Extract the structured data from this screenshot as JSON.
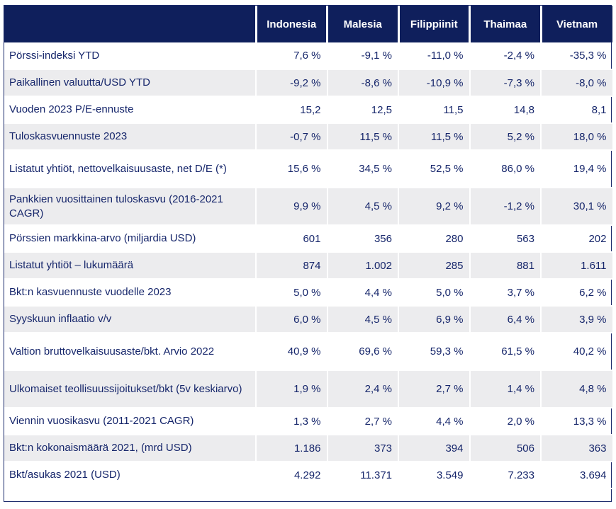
{
  "chart_data": {
    "type": "table",
    "columns": [
      "Indonesia",
      "Malesia",
      "Filippiinit",
      "Thaimaa",
      "Vietnam"
    ],
    "rows": [
      {
        "label": "Pörssi-indeksi YTD",
        "values": [
          "7,6 %",
          "-9,1 %",
          "-11,0 %",
          "-2,4 %",
          "-35,3 %"
        ]
      },
      {
        "label": "Paikallinen valuutta/USD YTD",
        "values": [
          "-9,2 %",
          "-8,6 %",
          "-10,9 %",
          "-7,3 %",
          "-8,0 %"
        ]
      },
      {
        "label": "Vuoden 2023 P/E-ennuste",
        "values": [
          "15,2",
          "12,5",
          "11,5",
          "14,8",
          "8,1"
        ]
      },
      {
        "label": "Tuloskasvuennuste 2023",
        "values": [
          "-0,7 %",
          "11,5 %",
          "11,5 %",
          "5,2 %",
          "18,0 %"
        ]
      },
      {
        "label": "Listatut yhtiöt, nettovelkaisuusaste, net D/E (*)",
        "values": [
          "15,6 %",
          "34,5 %",
          "52,5 %",
          "86,0 %",
          "19,4 %"
        ]
      },
      {
        "label": "Pankkien vuosittainen tuloskasvu (2016-2021 CAGR)",
        "values": [
          "9,9 %",
          "4,5 %",
          "9,2 %",
          "-1,2 %",
          "30,1 %"
        ]
      },
      {
        "label": "Pörssien markkina-arvo (miljardia USD)",
        "values": [
          "601",
          "356",
          "280",
          "563",
          "202"
        ]
      },
      {
        "label": "Listatut yhtiöt – lukumäärä",
        "values": [
          "874",
          "1.002",
          "285",
          "881",
          "1.611"
        ]
      },
      {
        "label": "Bkt:n kasvuennuste vuodelle 2023",
        "values": [
          "5,0 %",
          "4,4 %",
          "5,0 %",
          "3,7 %",
          "6,2 %"
        ]
      },
      {
        "label": "Syyskuun inflaatio v/v",
        "values": [
          "6,0 %",
          "4,5 %",
          "6,9 %",
          "6,4 %",
          "3,9 %"
        ]
      },
      {
        "label": "Valtion bruttovelkaisuusaste/bkt. Arvio 2022",
        "values": [
          "40,9 %",
          "69,6 %",
          "59,3 %",
          "61,5 %",
          "40,2 %"
        ]
      },
      {
        "label": "Ulkomaiset teollisuussijoitukset/bkt (5v keskiarvo)",
        "values": [
          "1,9 %",
          "2,4 %",
          "2,7 %",
          "1,4 %",
          "4,8 %"
        ]
      },
      {
        "label": "Viennin vuosikasvu  (2011-2021 CAGR)",
        "values": [
          "1,3 %",
          "2,7 %",
          "4,4 %",
          "2,0 %",
          "13,3 %"
        ]
      },
      {
        "label": "Bkt:n kokonaismäärä 2021, (mrd USD)",
        "values": [
          "1.186",
          "373",
          "394",
          "506",
          "363"
        ]
      },
      {
        "label": "Bkt/asukas 2021 (USD)",
        "values": [
          "4.292",
          "11.371",
          "3.549",
          "7.233",
          "3.694"
        ]
      }
    ]
  },
  "colors": {
    "header_bg": "#0f1f5c",
    "header_text": "#ffffff",
    "body_text": "#16266b",
    "stripe": "#ececee"
  }
}
